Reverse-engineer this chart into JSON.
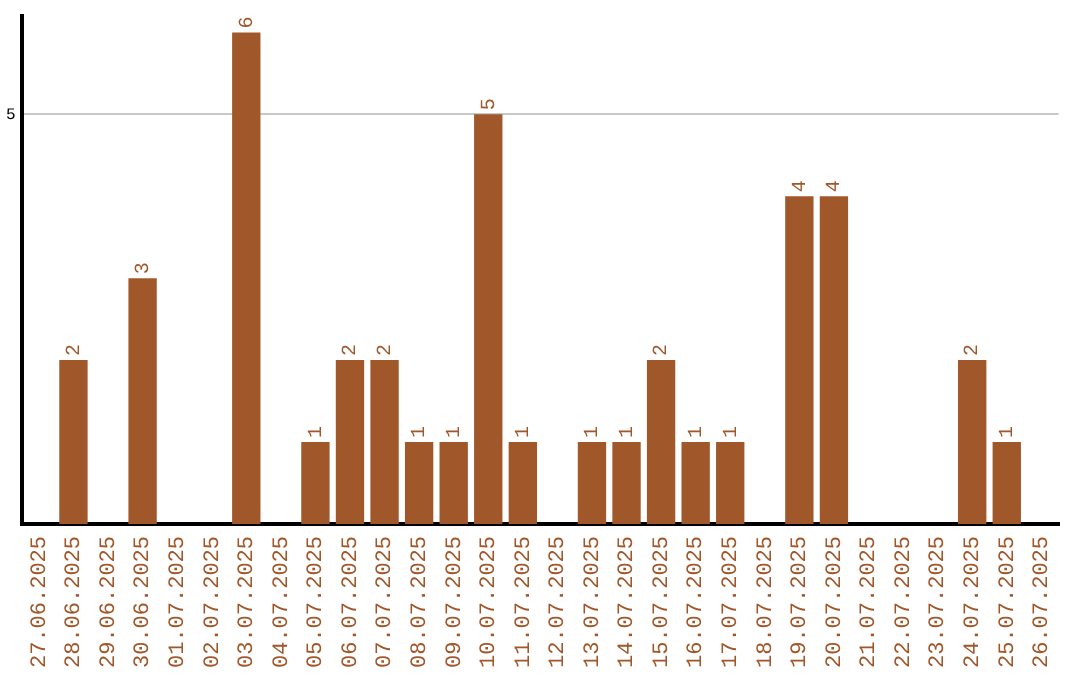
{
  "chart_data": {
    "type": "bar",
    "categories": [
      "27.06.2025",
      "28.06.2025",
      "29.06.2025",
      "30.06.2025",
      "01.07.2025",
      "02.07.2025",
      "03.07.2025",
      "04.07.2025",
      "05.07.2025",
      "06.07.2025",
      "07.07.2025",
      "08.07.2025",
      "09.07.2025",
      "10.07.2025",
      "11.07.2025",
      "12.07.2025",
      "13.07.2025",
      "14.07.2025",
      "15.07.2025",
      "16.07.2025",
      "17.07.2025",
      "18.07.2025",
      "19.07.2025",
      "20.07.2025",
      "21.07.2025",
      "22.07.2025",
      "23.07.2025",
      "24.07.2025",
      "25.07.2025",
      "26.07.2025"
    ],
    "values": [
      0,
      2,
      0,
      3,
      0,
      0,
      6,
      0,
      1,
      2,
      2,
      1,
      1,
      5,
      1,
      0,
      1,
      1,
      2,
      1,
      1,
      0,
      4,
      4,
      0,
      0,
      0,
      2,
      1,
      0
    ],
    "value_labels": [
      null,
      "2",
      null,
      "3",
      null,
      null,
      "6",
      null,
      "1",
      "2",
      "2",
      "1",
      "1",
      "5",
      "1",
      null,
      "1",
      "1",
      "2",
      "1",
      "1",
      null,
      "4",
      "4",
      null,
      null,
      null,
      "2",
      "1",
      null
    ],
    "color": "#a0572a",
    "ylim": [
      0,
      6.2
    ],
    "yticks": [
      5
    ],
    "grid": "y",
    "legend": false
  }
}
